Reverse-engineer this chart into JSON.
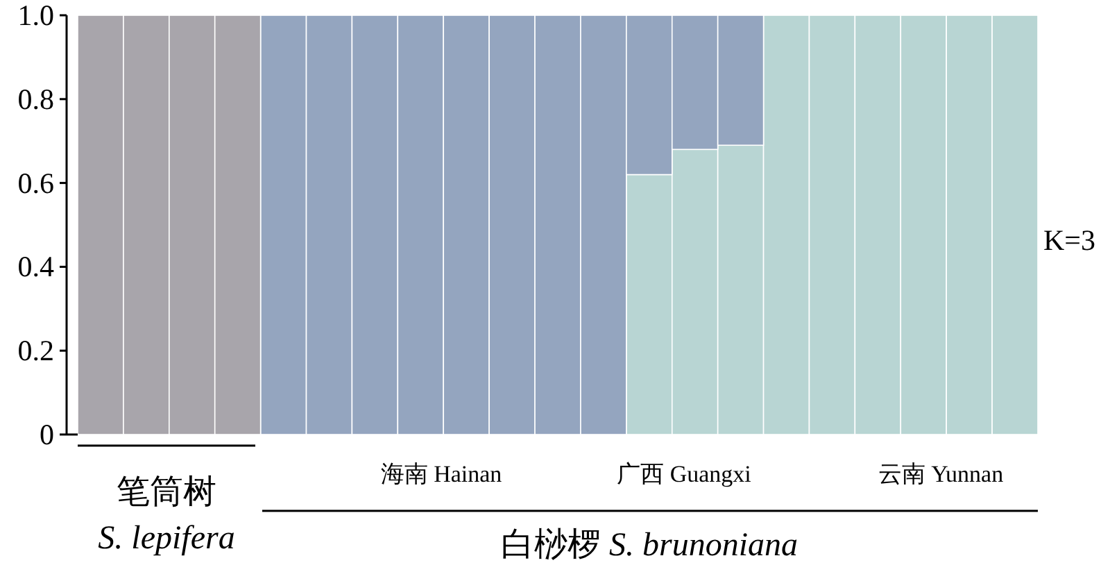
{
  "chart_data": {
    "type": "bar",
    "stacked": true,
    "categories": [
      null,
      null,
      null,
      null,
      null,
      null,
      null,
      null,
      null,
      null,
      null,
      null,
      null,
      null,
      null,
      null,
      null,
      null,
      null,
      null,
      null
    ],
    "series": [
      {
        "color": "#b8d5d3",
        "values": [
          0,
          0,
          0,
          0,
          0,
          0,
          0,
          0,
          0,
          0,
          0,
          0,
          0.62,
          0.68,
          0.69,
          1,
          1,
          1,
          1,
          1,
          1
        ]
      },
      {
        "color": "#94a5bf",
        "values": [
          0,
          0,
          0,
          0,
          1,
          1,
          1,
          1,
          1,
          1,
          1,
          1,
          0.38,
          0.32,
          0.31,
          0,
          0,
          0,
          0,
          0,
          0
        ]
      },
      {
        "color": "#a8a5ab",
        "values": [
          1,
          1,
          1,
          1,
          0,
          0,
          0,
          0,
          0,
          0,
          0,
          0,
          0,
          0,
          0,
          0,
          0,
          0,
          0,
          0,
          0
        ]
      }
    ],
    "ylim": [
      0,
      1
    ],
    "yticks": [
      0,
      0.2,
      0.4,
      0.6,
      0.8,
      {
        "value": 1,
        "label": "1.0"
      }
    ],
    "tick_labels": "y",
    "annotations": [
      "K=3",
      "海南 Hainan",
      "广西 Guangxi",
      "云南 Yunnan",
      "笔筒树",
      "*S. lepifera*",
      "白桫椤 *S. brunoniana*"
    ]
  }
}
